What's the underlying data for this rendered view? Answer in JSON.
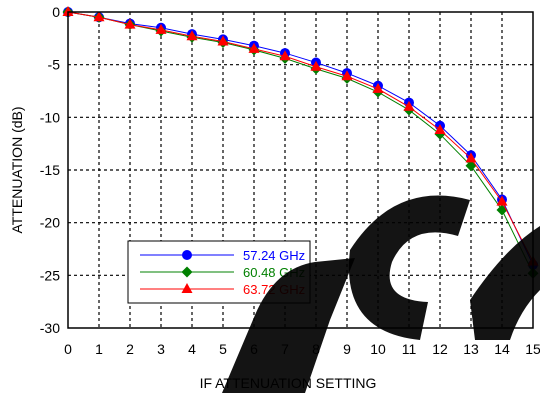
{
  "chart_data": {
    "type": "line",
    "xlabel": "IF ATTENUATION SETTING",
    "ylabel": "ATTENUATION (dB)",
    "xlim": [
      0,
      15
    ],
    "ylim": [
      -30,
      0
    ],
    "x_ticks": [
      0,
      1,
      2,
      3,
      4,
      5,
      6,
      7,
      8,
      9,
      10,
      11,
      12,
      13,
      14,
      15
    ],
    "y_ticks": [
      0,
      -5,
      -10,
      -15,
      -20,
      -25,
      -30
    ],
    "grid": true,
    "legend_position": "lower-left",
    "x": [
      0,
      1,
      2,
      3,
      4,
      5,
      6,
      7,
      8,
      9,
      10,
      11,
      12,
      13,
      14,
      15
    ],
    "series": [
      {
        "name": "57.24 GHz",
        "color": "#0000ff",
        "marker": "circle",
        "values": [
          0,
          -0.5,
          -1.1,
          -1.5,
          -2.1,
          -2.6,
          -3.2,
          -3.9,
          -4.8,
          -5.8,
          -7.0,
          -8.6,
          -10.8,
          -13.6,
          -17.8,
          -24.0
        ]
      },
      {
        "name": "60.48 GHz",
        "color": "#008000",
        "marker": "diamond",
        "values": [
          0,
          -0.5,
          -1.2,
          -1.8,
          -2.4,
          -2.9,
          -3.6,
          -4.4,
          -5.4,
          -6.3,
          -7.6,
          -9.3,
          -11.6,
          -14.6,
          -18.8,
          -24.8
        ]
      },
      {
        "name": "63.72 GHz",
        "color": "#ff0000",
        "marker": "triangle",
        "values": [
          0,
          -0.5,
          -1.2,
          -1.7,
          -2.3,
          -2.8,
          -3.5,
          -4.2,
          -5.2,
          -6.1,
          -7.3,
          -9.0,
          -11.2,
          -13.9,
          -18.0,
          -23.7
        ]
      }
    ]
  }
}
